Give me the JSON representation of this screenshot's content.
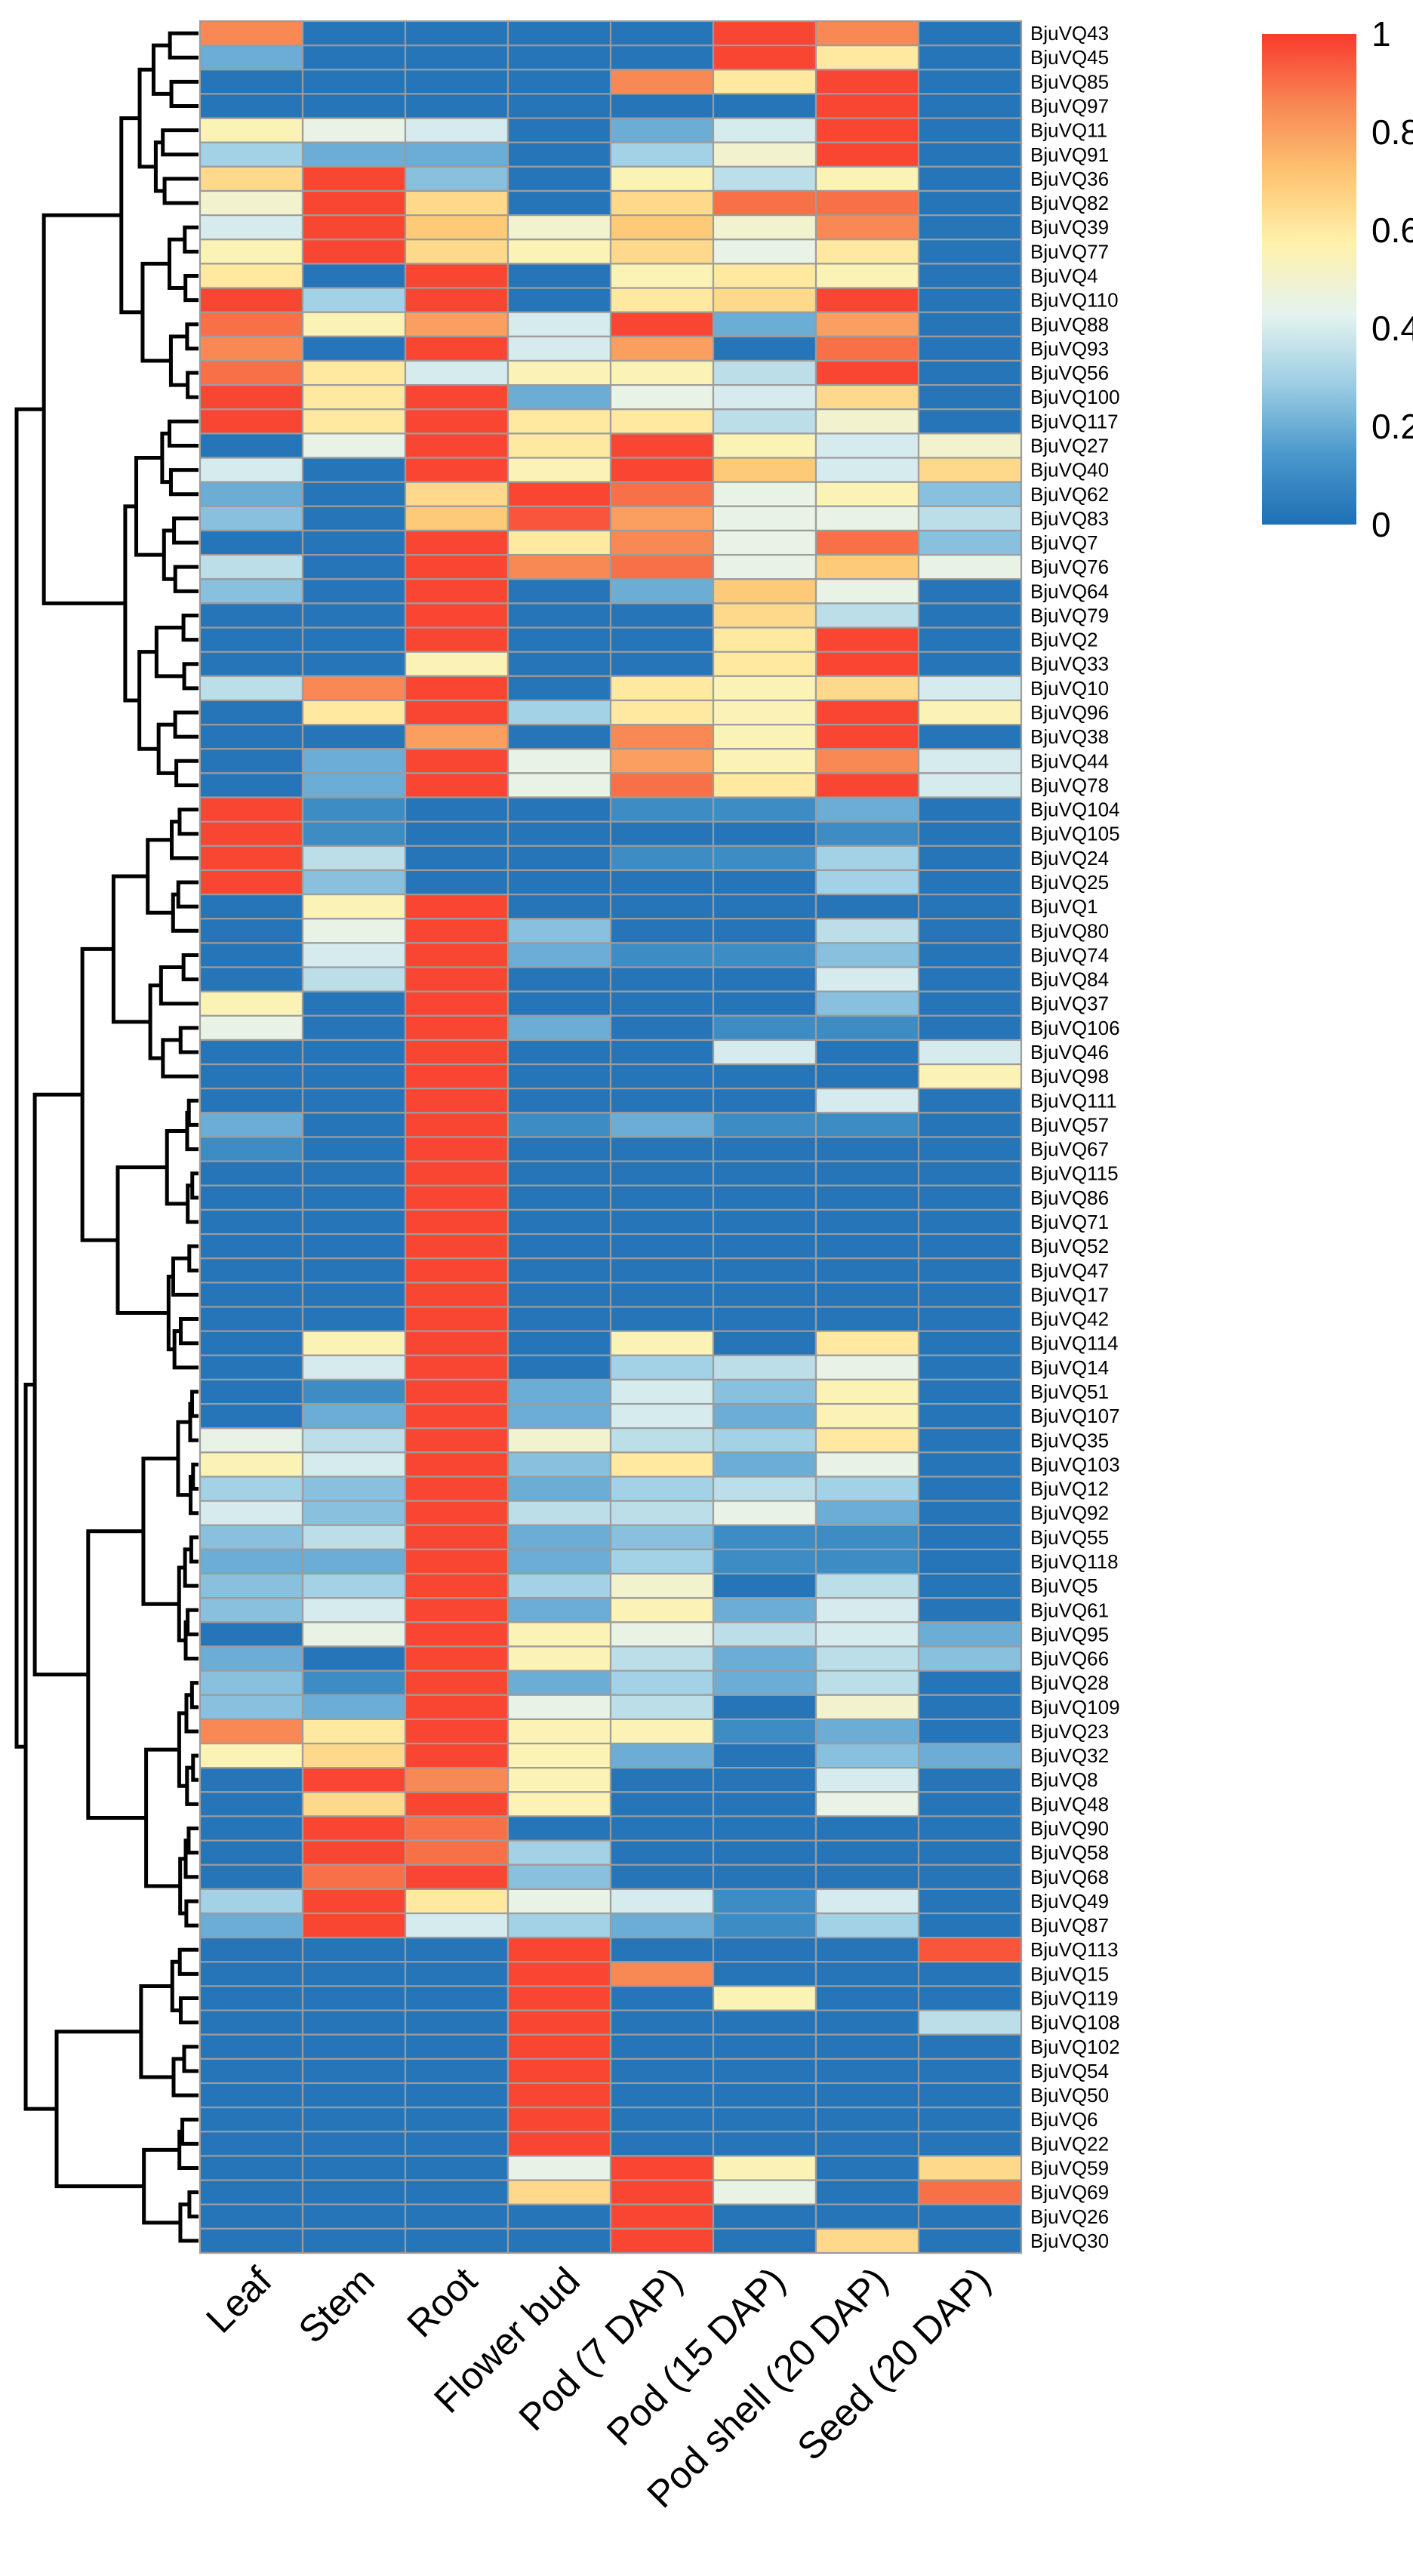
{
  "chart_data": {
    "type": "heatmap",
    "title": "",
    "columns": [
      "Leaf",
      "Stem",
      "Root",
      "Flower bud",
      "Pod (7 DAP)",
      "Pod (15 DAP)",
      "Pod shell (20 DAP)",
      "Seed (20 DAP)"
    ],
    "rows": [
      "BjuVQ43",
      "BjuVQ45",
      "BjuVQ85",
      "BjuVQ97",
      "BjuVQ11",
      "BjuVQ91",
      "BjuVQ36",
      "BjuVQ82",
      "BjuVQ39",
      "BjuVQ77",
      "BjuVQ4",
      "BjuVQ110",
      "BjuVQ88",
      "BjuVQ93",
      "BjuVQ56",
      "BjuVQ100",
      "BjuVQ117",
      "BjuVQ27",
      "BjuVQ40",
      "BjuVQ62",
      "BjuVQ83",
      "BjuVQ7",
      "BjuVQ76",
      "BjuVQ64",
      "BjuVQ79",
      "BjuVQ2",
      "BjuVQ33",
      "BjuVQ10",
      "BjuVQ96",
      "BjuVQ38",
      "BjuVQ44",
      "BjuVQ78",
      "BjuVQ104",
      "BjuVQ105",
      "BjuVQ24",
      "BjuVQ25",
      "BjuVQ1",
      "BjuVQ80",
      "BjuVQ74",
      "BjuVQ84",
      "BjuVQ37",
      "BjuVQ106",
      "BjuVQ46",
      "BjuVQ98",
      "BjuVQ111",
      "BjuVQ57",
      "BjuVQ67",
      "BjuVQ115",
      "BjuVQ86",
      "BjuVQ71",
      "BjuVQ52",
      "BjuVQ47",
      "BjuVQ17",
      "BjuVQ42",
      "BjuVQ114",
      "BjuVQ14",
      "BjuVQ51",
      "BjuVQ107",
      "BjuVQ35",
      "BjuVQ103",
      "BjuVQ12",
      "BjuVQ92",
      "BjuVQ55",
      "BjuVQ118",
      "BjuVQ5",
      "BjuVQ61",
      "BjuVQ95",
      "BjuVQ66",
      "BjuVQ28",
      "BjuVQ109",
      "BjuVQ23",
      "BjuVQ32",
      "BjuVQ8",
      "BjuVQ48",
      "BjuVQ90",
      "BjuVQ58",
      "BjuVQ68",
      "BjuVQ49",
      "BjuVQ87",
      "BjuVQ113",
      "BjuVQ15",
      "BjuVQ119",
      "BjuVQ108",
      "BjuVQ102",
      "BjuVQ54",
      "BjuVQ50",
      "BjuVQ6",
      "BjuVQ22",
      "BjuVQ59",
      "BjuVQ69",
      "BjuVQ26",
      "BjuVQ30"
    ],
    "values": [
      [
        0.85,
        0.02,
        0.02,
        0.02,
        0.02,
        0.98,
        0.85,
        0.02
      ],
      [
        0.2,
        0.02,
        0.02,
        0.02,
        0.02,
        0.98,
        0.6,
        0.02
      ],
      [
        0.02,
        0.02,
        0.02,
        0.02,
        0.85,
        0.6,
        0.98,
        0.02
      ],
      [
        0.02,
        0.02,
        0.02,
        0.02,
        0.02,
        0.02,
        0.98,
        0.02
      ],
      [
        0.55,
        0.45,
        0.4,
        0.02,
        0.2,
        0.4,
        0.98,
        0.02
      ],
      [
        0.3,
        0.2,
        0.2,
        0.02,
        0.3,
        0.5,
        0.98,
        0.02
      ],
      [
        0.65,
        0.98,
        0.25,
        0.02,
        0.55,
        0.35,
        0.55,
        0.02
      ],
      [
        0.5,
        0.98,
        0.65,
        0.02,
        0.65,
        0.9,
        0.9,
        0.02
      ],
      [
        0.4,
        0.98,
        0.7,
        0.5,
        0.7,
        0.5,
        0.85,
        0.02
      ],
      [
        0.55,
        0.98,
        0.65,
        0.55,
        0.65,
        0.45,
        0.6,
        0.02
      ],
      [
        0.6,
        0.02,
        0.98,
        0.02,
        0.55,
        0.6,
        0.55,
        0.02
      ],
      [
        0.98,
        0.3,
        0.98,
        0.02,
        0.6,
        0.65,
        0.98,
        0.02
      ],
      [
        0.9,
        0.55,
        0.8,
        0.4,
        0.98,
        0.2,
        0.8,
        0.02
      ],
      [
        0.85,
        0.02,
        0.98,
        0.4,
        0.8,
        0.02,
        0.9,
        0.02
      ],
      [
        0.9,
        0.6,
        0.4,
        0.55,
        0.55,
        0.35,
        0.98,
        0.02
      ],
      [
        0.98,
        0.6,
        0.98,
        0.2,
        0.45,
        0.4,
        0.65,
        0.02
      ],
      [
        0.98,
        0.6,
        0.98,
        0.6,
        0.6,
        0.35,
        0.5,
        0.02
      ],
      [
        0.02,
        0.45,
        0.98,
        0.6,
        0.98,
        0.55,
        0.4,
        0.5
      ],
      [
        0.4,
        0.02,
        0.98,
        0.55,
        0.98,
        0.7,
        0.4,
        0.65
      ],
      [
        0.2,
        0.02,
        0.65,
        0.98,
        0.9,
        0.45,
        0.55,
        0.25
      ],
      [
        0.25,
        0.02,
        0.7,
        0.95,
        0.8,
        0.45,
        0.45,
        0.35
      ],
      [
        0.02,
        0.02,
        0.98,
        0.6,
        0.85,
        0.45,
        0.9,
        0.25
      ],
      [
        0.35,
        0.02,
        0.98,
        0.85,
        0.9,
        0.45,
        0.7,
        0.45
      ],
      [
        0.25,
        0.02,
        0.98,
        0.02,
        0.2,
        0.7,
        0.45,
        0.02
      ],
      [
        0.02,
        0.02,
        0.98,
        0.02,
        0.02,
        0.65,
        0.35,
        0.02
      ],
      [
        0.02,
        0.02,
        0.98,
        0.02,
        0.02,
        0.6,
        0.98,
        0.02
      ],
      [
        0.02,
        0.02,
        0.55,
        0.02,
        0.02,
        0.6,
        0.98,
        0.02
      ],
      [
        0.35,
        0.85,
        0.98,
        0.02,
        0.6,
        0.55,
        0.65,
        0.4
      ],
      [
        0.02,
        0.6,
        0.98,
        0.3,
        0.6,
        0.55,
        0.98,
        0.55
      ],
      [
        0.02,
        0.02,
        0.8,
        0.02,
        0.85,
        0.55,
        0.98,
        0.02
      ],
      [
        0.02,
        0.2,
        0.98,
        0.45,
        0.8,
        0.55,
        0.85,
        0.4
      ],
      [
        0.02,
        0.2,
        0.98,
        0.45,
        0.9,
        0.6,
        0.98,
        0.4
      ],
      [
        0.98,
        0.1,
        0.02,
        0.02,
        0.1,
        0.1,
        0.2,
        0.02
      ],
      [
        0.98,
        0.1,
        0.02,
        0.02,
        0.02,
        0.02,
        0.1,
        0.02
      ],
      [
        0.98,
        0.35,
        0.02,
        0.02,
        0.1,
        0.1,
        0.3,
        0.02
      ],
      [
        0.98,
        0.25,
        0.02,
        0.02,
        0.02,
        0.02,
        0.3,
        0.02
      ],
      [
        0.02,
        0.55,
        0.98,
        0.02,
        0.02,
        0.02,
        0.02,
        0.02
      ],
      [
        0.02,
        0.45,
        0.98,
        0.25,
        0.02,
        0.02,
        0.35,
        0.02
      ],
      [
        0.02,
        0.4,
        0.98,
        0.2,
        0.1,
        0.1,
        0.25,
        0.02
      ],
      [
        0.02,
        0.35,
        0.98,
        0.02,
        0.02,
        0.02,
        0.4,
        0.02
      ],
      [
        0.55,
        0.02,
        0.98,
        0.02,
        0.02,
        0.02,
        0.25,
        0.02
      ],
      [
        0.45,
        0.02,
        0.98,
        0.2,
        0.02,
        0.1,
        0.1,
        0.02
      ],
      [
        0.02,
        0.02,
        0.98,
        0.02,
        0.02,
        0.4,
        0.02,
        0.4
      ],
      [
        0.02,
        0.02,
        0.98,
        0.02,
        0.02,
        0.02,
        0.02,
        0.55
      ],
      [
        0.02,
        0.02,
        0.98,
        0.02,
        0.02,
        0.02,
        0.4,
        0.02
      ],
      [
        0.2,
        0.02,
        0.98,
        0.1,
        0.2,
        0.1,
        0.1,
        0.02
      ],
      [
        0.1,
        0.02,
        0.98,
        0.02,
        0.02,
        0.02,
        0.02,
        0.02
      ],
      [
        0.02,
        0.02,
        0.98,
        0.02,
        0.02,
        0.02,
        0.02,
        0.02
      ],
      [
        0.02,
        0.02,
        0.98,
        0.02,
        0.02,
        0.02,
        0.02,
        0.02
      ],
      [
        0.02,
        0.02,
        0.98,
        0.02,
        0.02,
        0.02,
        0.02,
        0.02
      ],
      [
        0.02,
        0.02,
        0.98,
        0.02,
        0.02,
        0.02,
        0.02,
        0.02
      ],
      [
        0.02,
        0.02,
        0.98,
        0.02,
        0.02,
        0.02,
        0.02,
        0.02
      ],
      [
        0.02,
        0.02,
        0.98,
        0.02,
        0.02,
        0.02,
        0.02,
        0.02
      ],
      [
        0.02,
        0.02,
        0.98,
        0.02,
        0.02,
        0.02,
        0.02,
        0.02
      ],
      [
        0.02,
        0.55,
        0.98,
        0.02,
        0.55,
        0.02,
        0.6,
        0.02
      ],
      [
        0.02,
        0.4,
        0.98,
        0.02,
        0.3,
        0.35,
        0.45,
        0.02
      ],
      [
        0.02,
        0.1,
        0.98,
        0.2,
        0.4,
        0.25,
        0.55,
        0.02
      ],
      [
        0.02,
        0.2,
        0.98,
        0.2,
        0.4,
        0.2,
        0.55,
        0.02
      ],
      [
        0.45,
        0.35,
        0.98,
        0.5,
        0.35,
        0.3,
        0.6,
        0.02
      ],
      [
        0.55,
        0.4,
        0.98,
        0.25,
        0.6,
        0.2,
        0.45,
        0.02
      ],
      [
        0.3,
        0.25,
        0.98,
        0.2,
        0.3,
        0.35,
        0.3,
        0.02
      ],
      [
        0.4,
        0.25,
        0.98,
        0.35,
        0.35,
        0.45,
        0.2,
        0.02
      ],
      [
        0.25,
        0.35,
        0.98,
        0.2,
        0.25,
        0.1,
        0.1,
        0.02
      ],
      [
        0.2,
        0.2,
        0.98,
        0.2,
        0.3,
        0.1,
        0.1,
        0.02
      ],
      [
        0.25,
        0.3,
        0.98,
        0.3,
        0.5,
        0.02,
        0.35,
        0.02
      ],
      [
        0.25,
        0.4,
        0.98,
        0.2,
        0.55,
        0.2,
        0.4,
        0.02
      ],
      [
        0.02,
        0.45,
        0.98,
        0.55,
        0.45,
        0.35,
        0.4,
        0.2
      ],
      [
        0.2,
        0.02,
        0.98,
        0.55,
        0.35,
        0.2,
        0.35,
        0.25
      ],
      [
        0.25,
        0.1,
        0.98,
        0.2,
        0.3,
        0.2,
        0.35,
        0.02
      ],
      [
        0.25,
        0.2,
        0.98,
        0.45,
        0.35,
        0.02,
        0.5,
        0.02
      ],
      [
        0.85,
        0.6,
        0.98,
        0.55,
        0.55,
        0.1,
        0.2,
        0.02
      ],
      [
        0.55,
        0.65,
        0.98,
        0.55,
        0.2,
        0.02,
        0.25,
        0.2
      ],
      [
        0.02,
        0.98,
        0.85,
        0.55,
        0.02,
        0.02,
        0.4,
        0.02
      ],
      [
        0.02,
        0.65,
        0.98,
        0.55,
        0.02,
        0.02,
        0.45,
        0.02
      ],
      [
        0.02,
        0.98,
        0.9,
        0.02,
        0.02,
        0.02,
        0.02,
        0.02
      ],
      [
        0.02,
        0.98,
        0.9,
        0.3,
        0.02,
        0.02,
        0.02,
        0.02
      ],
      [
        0.02,
        0.9,
        0.98,
        0.25,
        0.02,
        0.02,
        0.02,
        0.02
      ],
      [
        0.3,
        0.98,
        0.6,
        0.45,
        0.4,
        0.1,
        0.4,
        0.02
      ],
      [
        0.2,
        0.98,
        0.4,
        0.3,
        0.2,
        0.1,
        0.3,
        0.02
      ],
      [
        0.02,
        0.02,
        0.02,
        0.98,
        0.02,
        0.02,
        0.02,
        0.95
      ],
      [
        0.02,
        0.02,
        0.02,
        0.98,
        0.85,
        0.02,
        0.02,
        0.02
      ],
      [
        0.02,
        0.02,
        0.02,
        0.98,
        0.02,
        0.55,
        0.02,
        0.02
      ],
      [
        0.02,
        0.02,
        0.02,
        0.98,
        0.02,
        0.02,
        0.02,
        0.35
      ],
      [
        0.02,
        0.02,
        0.02,
        0.98,
        0.02,
        0.02,
        0.02,
        0.02
      ],
      [
        0.02,
        0.02,
        0.02,
        0.98,
        0.02,
        0.02,
        0.02,
        0.02
      ],
      [
        0.02,
        0.02,
        0.02,
        0.98,
        0.02,
        0.02,
        0.02,
        0.02
      ],
      [
        0.02,
        0.02,
        0.02,
        0.98,
        0.02,
        0.02,
        0.02,
        0.02
      ],
      [
        0.02,
        0.02,
        0.02,
        0.98,
        0.02,
        0.02,
        0.02,
        0.02
      ],
      [
        0.02,
        0.02,
        0.02,
        0.45,
        0.98,
        0.55,
        0.02,
        0.65
      ],
      [
        0.02,
        0.02,
        0.02,
        0.65,
        0.98,
        0.45,
        0.02,
        0.9
      ],
      [
        0.02,
        0.02,
        0.02,
        0.02,
        0.98,
        0.02,
        0.02,
        0.02
      ],
      [
        0.02,
        0.02,
        0.02,
        0.02,
        0.98,
        0.02,
        0.65,
        0.02
      ]
    ],
    "color_scale": {
      "min": 0,
      "max": 1,
      "ticks": [
        "0",
        "0.2",
        "0.4",
        "0.6",
        "0.8",
        "1"
      ],
      "colors": [
        "#1f6fb5",
        "#4a98cb",
        "#9ccde4",
        "#e4f3ef",
        "#fff2ac",
        "#fdc572",
        "#f88653",
        "#f93b2e"
      ]
    },
    "legend_position": "top-right",
    "grid_color": "#9c9c9c",
    "dendrogram": "rows"
  }
}
